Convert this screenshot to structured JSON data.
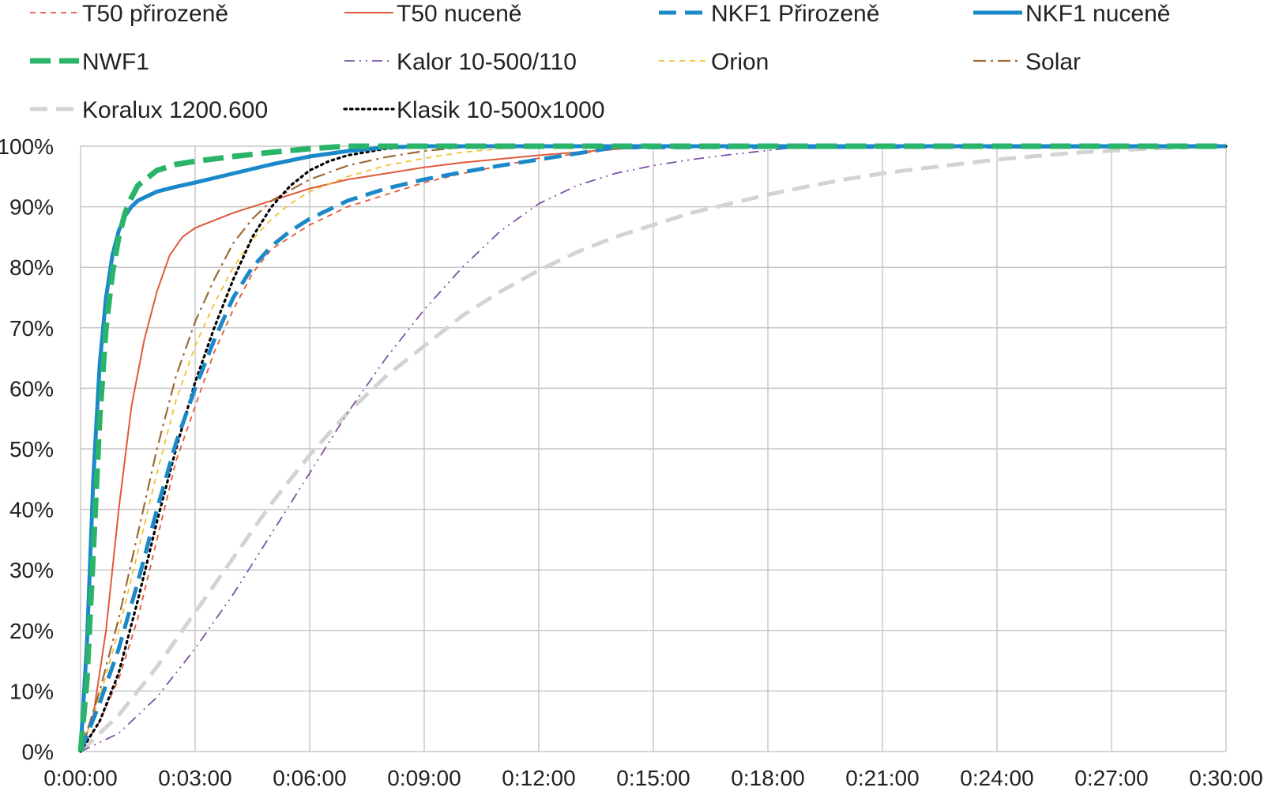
{
  "chart_data": {
    "type": "line",
    "title": "",
    "xlabel": "",
    "ylabel": "",
    "x_unit": "h:mm:ss",
    "xlim": [
      "0:00:00",
      "0:30:00"
    ],
    "ylim": [
      0,
      100
    ],
    "x_ticks": [
      "0:00:00",
      "0:03:00",
      "0:06:00",
      "0:09:00",
      "0:12:00",
      "0:15:00",
      "0:18:00",
      "0:21:00",
      "0:24:00",
      "0:27:00",
      "0:30:00"
    ],
    "y_ticks": [
      "0%",
      "10%",
      "20%",
      "30%",
      "40%",
      "50%",
      "60%",
      "70%",
      "80%",
      "90%",
      "100%"
    ],
    "grid": true,
    "legend_position": "top",
    "series": [
      {
        "name": "T50 přirozeně",
        "color": "#e05a3a",
        "style": "dashed-thin",
        "x": [
          "0:00:00",
          "0:00:30",
          "0:01:00",
          "0:01:30",
          "0:02:00",
          "0:02:30",
          "0:03:00",
          "0:03:30",
          "0:04:00",
          "0:04:30",
          "0:05:00",
          "0:06:00",
          "0:07:00",
          "0:08:00",
          "0:09:00",
          "0:10:00",
          "0:12:00",
          "0:14:00",
          "0:16:00",
          "0:30:00"
        ],
        "y": [
          0,
          5,
          12,
          22,
          35,
          48,
          57,
          66,
          73,
          79,
          83,
          87,
          90,
          92,
          94,
          95.5,
          98,
          99.5,
          100,
          100
        ]
      },
      {
        "name": "T50 nuceně",
        "color": "#e05a3a",
        "style": "solid-thin",
        "x": [
          "0:00:00",
          "0:00:20",
          "0:00:40",
          "0:01:00",
          "0:01:20",
          "0:01:40",
          "0:02:00",
          "0:02:20",
          "0:02:40",
          "0:03:00",
          "0:04:00",
          "0:05:00",
          "0:06:00",
          "0:07:00",
          "0:08:00",
          "0:09:00",
          "0:10:00",
          "0:12:00",
          "0:14:00",
          "0:15:00",
          "0:30:00"
        ],
        "y": [
          0,
          6,
          20,
          40,
          57,
          68,
          76,
          82,
          85,
          86.5,
          89,
          91,
          93,
          94.5,
          95.5,
          96.5,
          97.3,
          98.5,
          99.5,
          100,
          100
        ]
      },
      {
        "name": "NKF1 Přirozeně",
        "color": "#1a88c9",
        "style": "dashed-thick",
        "x": [
          "0:00:00",
          "0:00:30",
          "0:01:00",
          "0:01:30",
          "0:02:00",
          "0:02:30",
          "0:03:00",
          "0:03:30",
          "0:04:00",
          "0:04:30",
          "0:05:00",
          "0:05:30",
          "0:06:00",
          "0:07:00",
          "0:08:00",
          "0:09:00",
          "0:10:00",
          "0:11:00",
          "0:12:00",
          "0:13:00",
          "0:14:00",
          "0:30:00"
        ],
        "y": [
          0,
          8,
          17,
          28,
          40,
          51,
          60,
          68,
          75,
          80,
          83.5,
          86,
          88,
          91,
          93,
          94.5,
          95.7,
          96.8,
          97.8,
          98.8,
          99.8,
          100
        ]
      },
      {
        "name": "NKF1 nuceně",
        "color": "#1a88c9",
        "style": "solid-thick",
        "x": [
          "0:00:00",
          "0:00:10",
          "0:00:20",
          "0:00:30",
          "0:00:40",
          "0:00:50",
          "0:01:00",
          "0:01:10",
          "0:01:20",
          "0:01:30",
          "0:02:00",
          "0:02:30",
          "0:03:00",
          "0:04:00",
          "0:05:00",
          "0:06:00",
          "0:07:00",
          "0:08:00",
          "0:09:00",
          "0:30:00"
        ],
        "y": [
          0,
          18,
          45,
          64,
          75,
          82,
          86,
          88.5,
          90,
          91,
          92.5,
          93.3,
          94,
          95.5,
          97,
          98.3,
          99.2,
          99.8,
          100,
          100
        ]
      },
      {
        "name": "NWF1",
        "color": "#2ab469",
        "style": "dashed-xthick",
        "x": [
          "0:00:00",
          "0:00:10",
          "0:00:20",
          "0:00:30",
          "0:00:40",
          "0:00:50",
          "0:01:00",
          "0:01:10",
          "0:01:20",
          "0:01:30",
          "0:02:00",
          "0:02:30",
          "0:03:00",
          "0:04:00",
          "0:05:00",
          "0:06:00",
          "0:07:00",
          "0:30:00"
        ],
        "y": [
          0,
          12,
          33,
          55,
          70,
          79,
          85,
          89,
          91.5,
          93.5,
          96,
          97,
          97.5,
          98.3,
          99,
          99.6,
          100,
          100
        ]
      },
      {
        "name": "Kalor 10-500/110",
        "color": "#7b52a6",
        "style": "dash-dot-dot",
        "x": [
          "0:00:00",
          "0:01:00",
          "0:02:00",
          "0:03:00",
          "0:04:00",
          "0:05:00",
          "0:06:00",
          "0:07:00",
          "0:08:00",
          "0:09:00",
          "0:10:00",
          "0:11:00",
          "0:12:00",
          "0:13:00",
          "0:14:00",
          "0:15:00",
          "0:16:00",
          "0:17:00",
          "0:18:00",
          "0:19:00",
          "0:30:00"
        ],
        "y": [
          0,
          3,
          9,
          17,
          26,
          36,
          46,
          56,
          65,
          73,
          80,
          86,
          90.5,
          93.5,
          95.5,
          96.8,
          97.8,
          98.6,
          99.3,
          100,
          100
        ]
      },
      {
        "name": "Orion",
        "color": "#f2c12e",
        "style": "dashed-thin",
        "x": [
          "0:00:00",
          "0:00:30",
          "0:01:00",
          "0:01:30",
          "0:02:00",
          "0:02:30",
          "0:03:00",
          "0:03:30",
          "0:04:00",
          "0:04:30",
          "0:05:00",
          "0:05:30",
          "0:06:00",
          "0:07:00",
          "0:08:00",
          "0:09:00",
          "0:10:00",
          "0:11:00",
          "0:12:00",
          "0:30:00"
        ],
        "y": [
          0,
          9,
          20,
          33,
          46,
          58,
          67,
          74,
          80,
          84.5,
          88,
          90.5,
          92.5,
          95,
          96.8,
          98,
          99,
          99.6,
          100,
          100
        ]
      },
      {
        "name": "Solar",
        "color": "#9e6a37",
        "style": "dash-dot",
        "x": [
          "0:00:00",
          "0:00:30",
          "0:01:00",
          "0:01:30",
          "0:02:00",
          "0:02:30",
          "0:03:00",
          "0:03:30",
          "0:04:00",
          "0:04:30",
          "0:05:00",
          "0:06:00",
          "0:07:00",
          "0:08:00",
          "0:09:00",
          "0:10:00",
          "0:11:00",
          "0:30:00"
        ],
        "y": [
          0,
          10,
          22,
          36,
          50,
          62,
          71,
          78,
          84,
          88,
          91,
          94.5,
          96.8,
          98.2,
          99.2,
          99.8,
          100,
          100
        ]
      },
      {
        "name": "Koralux 1200.600",
        "color": "#d3d3d3",
        "style": "dashed-thick",
        "x": [
          "0:00:00",
          "0:01:00",
          "0:02:00",
          "0:03:00",
          "0:04:00",
          "0:05:00",
          "0:06:00",
          "0:07:00",
          "0:08:00",
          "0:09:00",
          "0:10:00",
          "0:11:00",
          "0:12:00",
          "0:13:00",
          "0:14:00",
          "0:15:00",
          "0:16:00",
          "0:17:00",
          "0:18:00",
          "0:19:00",
          "0:20:00",
          "0:21:00",
          "0:22:00",
          "0:24:00",
          "0:26:00",
          "0:28:00",
          "0:30:00"
        ],
        "y": [
          0,
          6,
          14,
          23,
          32,
          41,
          49,
          56,
          62,
          67,
          72,
          76,
          79.5,
          82.5,
          85,
          87,
          89,
          90.5,
          92,
          93.3,
          94.5,
          95.5,
          96.3,
          97.8,
          98.9,
          99.6,
          100
        ]
      },
      {
        "name": "Klasik 10-500x1000",
        "color": "#000000",
        "style": "dotted",
        "x": [
          "0:00:00",
          "0:00:30",
          "0:01:00",
          "0:01:30",
          "0:02:00",
          "0:02:30",
          "0:03:00",
          "0:03:30",
          "0:04:00",
          "0:04:30",
          "0:05:00",
          "0:05:30",
          "0:06:00",
          "0:06:30",
          "0:07:00",
          "0:08:00",
          "0:09:00",
          "0:30:00"
        ],
        "y": [
          0,
          5,
          13,
          25,
          38,
          50,
          61,
          70,
          78,
          85,
          90,
          93.5,
          96,
          97.5,
          98.5,
          99.6,
          100,
          100
        ]
      }
    ]
  }
}
